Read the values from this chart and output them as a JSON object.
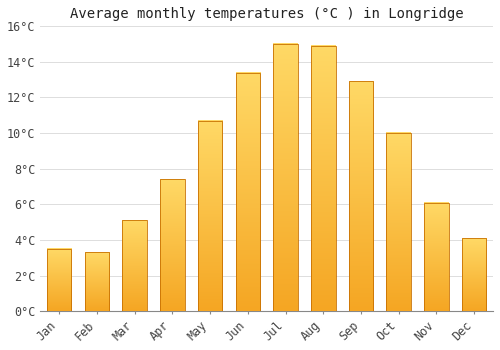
{
  "title": "Average monthly temperatures (°C ) in Longridge",
  "months": [
    "Jan",
    "Feb",
    "Mar",
    "Apr",
    "May",
    "Jun",
    "Jul",
    "Aug",
    "Sep",
    "Oct",
    "Nov",
    "Dec"
  ],
  "values": [
    3.5,
    3.3,
    5.1,
    7.4,
    10.7,
    13.4,
    15.0,
    14.9,
    12.9,
    10.0,
    6.1,
    4.1
  ],
  "bar_color_bottom": "#F5A623",
  "bar_color_top": "#FFD966",
  "bar_edge_color": "#C87000",
  "background_color": "#FFFFFF",
  "grid_color": "#DDDDDD",
  "ylim": [
    0,
    16
  ],
  "ytick_step": 2,
  "title_fontsize": 10,
  "tick_fontsize": 8.5,
  "font_family": "monospace"
}
